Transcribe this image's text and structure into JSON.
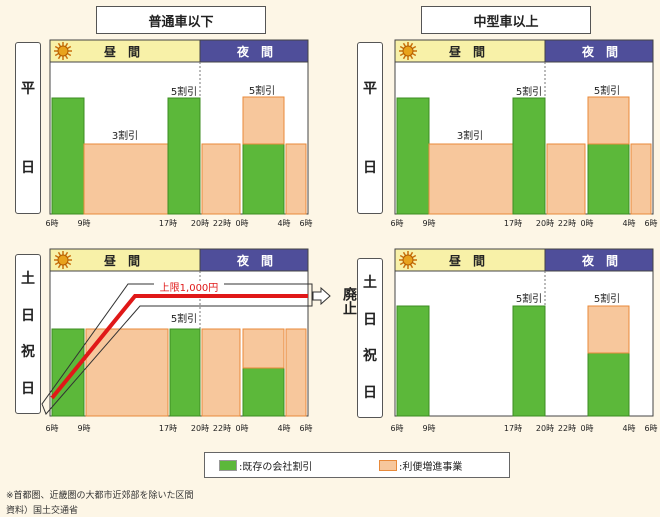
{
  "headers": {
    "left": "普通車以下",
    "right": "中型車以上"
  },
  "labels": {
    "day": "昼　間",
    "night": "夜　間",
    "weekday": [
      "平",
      "日"
    ],
    "holiday": [
      "土",
      "日",
      "祝",
      "日"
    ],
    "abolish": "廃止"
  },
  "colors": {
    "existing": "#5cb83a",
    "convenience": "#f7c79c",
    "day_band": "#f8f1a8",
    "night_band": "#4f4e9a",
    "cap_line": "#e01818"
  },
  "legend": {
    "existing": ":既存の会社割引",
    "convenience": ":利便増進事業"
  },
  "notes": {
    "area": "※首都圏、近畿圏の大都市近郊部を除いた区間",
    "source": "資料）国土交通省"
  },
  "chart_data": [
    {
      "type": "bar",
      "panel": "普通車以下 平日",
      "x_ticks": [
        "6時",
        "9時",
        "17時",
        "20時",
        "22時",
        "0時",
        "4時",
        "6時"
      ],
      "segments": [
        {
          "kind": "existing",
          "from": "6時",
          "to": "9時",
          "level": "top"
        },
        {
          "kind": "convenience",
          "from": "9時",
          "to": "17時",
          "discount": "3割引"
        },
        {
          "kind": "existing",
          "from": "17時",
          "to": "20時",
          "discount": "5割引"
        },
        {
          "kind": "convenience",
          "from": "20時",
          "to": "22時"
        },
        {
          "kind": "existing",
          "from": "0時",
          "to": "4時"
        },
        {
          "kind": "convenience",
          "from": "0時",
          "to": "4時",
          "discount": "5割引",
          "stacked": true
        },
        {
          "kind": "convenience",
          "from": "4時",
          "to": "6時"
        }
      ],
      "annotations": [
        "3割引",
        "5割引",
        "5割引"
      ]
    },
    {
      "type": "bar",
      "panel": "中型車以上 平日",
      "x_ticks": [
        "6時",
        "9時",
        "17時",
        "20時",
        "22時",
        "0時",
        "4時",
        "6時"
      ],
      "segments": [
        {
          "kind": "existing",
          "from": "6時",
          "to": "9時"
        },
        {
          "kind": "convenience",
          "from": "9時",
          "to": "17時",
          "discount": "3割引"
        },
        {
          "kind": "existing",
          "from": "17時",
          "to": "20時",
          "discount": "5割引"
        },
        {
          "kind": "convenience",
          "from": "20時",
          "to": "22時"
        },
        {
          "kind": "existing",
          "from": "0時",
          "to": "4時"
        },
        {
          "kind": "convenience",
          "from": "0時",
          "to": "4時",
          "discount": "5割引",
          "stacked": true
        },
        {
          "kind": "convenience",
          "from": "4時",
          "to": "6時"
        }
      ],
      "annotations": [
        "3割引",
        "5割引",
        "5割引"
      ]
    },
    {
      "type": "bar",
      "panel": "普通車以下 土日祝日",
      "x_ticks": [
        "6時",
        "9時",
        "17時",
        "20時",
        "22時",
        "0時",
        "4時",
        "6時"
      ],
      "segments": [
        {
          "kind": "existing",
          "from": "6時",
          "to": "9時"
        },
        {
          "kind": "convenience",
          "from": "9時",
          "to": "17時"
        },
        {
          "kind": "existing",
          "from": "17時",
          "to": "20時",
          "discount": "5割引"
        },
        {
          "kind": "convenience",
          "from": "20時",
          "to": "22時"
        },
        {
          "kind": "existing",
          "from": "0時",
          "to": "4時"
        },
        {
          "kind": "convenience",
          "from": "0時",
          "to": "4時",
          "stacked": true
        },
        {
          "kind": "convenience",
          "from": "4時",
          "to": "6時"
        }
      ],
      "annotations": [
        "上限1,000円",
        "5割引"
      ]
    },
    {
      "type": "bar",
      "panel": "中型車以上 土日祝日",
      "x_ticks": [
        "6時",
        "9時",
        "17時",
        "20時",
        "22時",
        "0時",
        "4時",
        "6時"
      ],
      "segments": [
        {
          "kind": "existing",
          "from": "6時",
          "to": "9時"
        },
        {
          "kind": "existing",
          "from": "17時",
          "to": "20時",
          "discount": "5割引"
        },
        {
          "kind": "existing",
          "from": "0時",
          "to": "4時"
        },
        {
          "kind": "convenience",
          "from": "0時",
          "to": "4時",
          "discount": "5割引",
          "stacked": true
        }
      ],
      "annotations": [
        "5割引",
        "5割引"
      ]
    }
  ]
}
